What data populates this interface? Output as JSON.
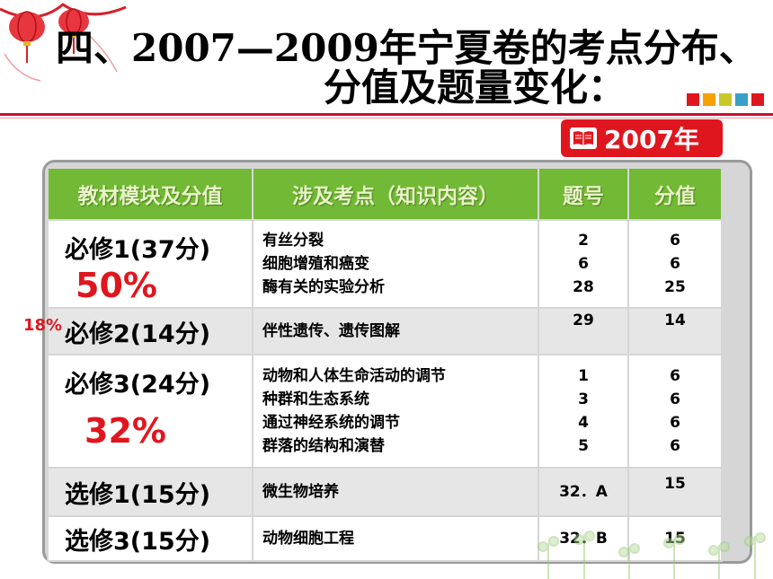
{
  "title": {
    "line1": "四、2007—2009年宁夏卷的考点分布、",
    "line2": "分值及题量变化："
  },
  "badge": {
    "label": "2007年",
    "icon": "book-icon"
  },
  "colors": {
    "accent_red": "#e0161e",
    "header_green": "#72b935",
    "panel_gray": "#d6d6d6"
  },
  "table": {
    "headers": [
      "教材模块及分值",
      "涉及考点（知识内容）",
      "题号",
      "分值"
    ],
    "rows": [
      {
        "module": "必修1(37分)",
        "points": [
          "有丝分裂",
          "细胞增殖和癌变",
          "酶有关的实验分析"
        ],
        "numbers": [
          "2",
          "6",
          "28"
        ],
        "scores": [
          "6",
          "6",
          "25"
        ],
        "percent": "50%"
      },
      {
        "module": "必修2(14分)",
        "points": [
          "伴性遗传、遗传图解"
        ],
        "numbers": [
          "29"
        ],
        "scores": [
          "14"
        ],
        "percent": "18%"
      },
      {
        "module": "必修3(24分)",
        "points": [
          "动物和人体生命活动的调节",
          "种群和生态系统",
          "通过神经系统的调节",
          "群落的结构和演替"
        ],
        "numbers": [
          "1",
          "3",
          "4",
          "5"
        ],
        "scores": [
          "6",
          "6",
          "6",
          "6"
        ],
        "percent": "32%"
      },
      {
        "module": "选修1(15分)",
        "points": [
          "微生物培养"
        ],
        "numbers": [
          "32．A"
        ],
        "scores": [
          "15"
        ]
      },
      {
        "module": "选修3(15分)",
        "points": [
          "动物细胞工程"
        ],
        "numbers": [
          "32．B"
        ],
        "scores": [
          "15"
        ]
      }
    ]
  }
}
